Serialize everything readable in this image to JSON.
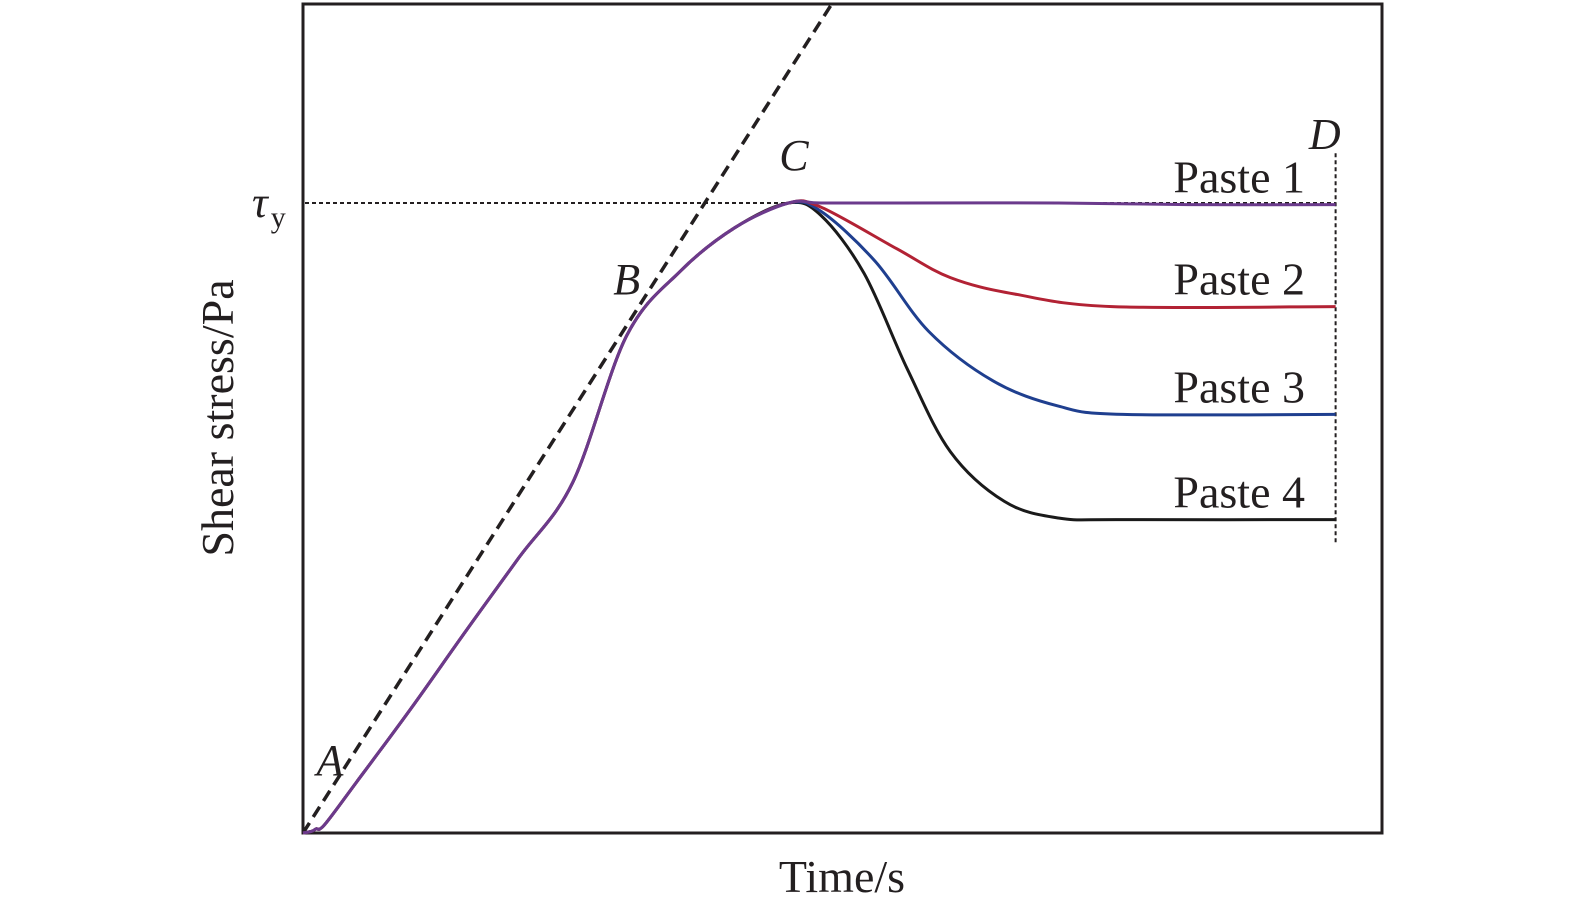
{
  "chart_data": {
    "type": "line",
    "xlabel": "Time/s",
    "ylabel": "Shear stress/Pa",
    "grid": false,
    "legend": "none (series labeled inline at right end of each curve)",
    "axis_ticks": "none",
    "x_range": [
      0,
      100
    ],
    "y_range": [
      0,
      100
    ],
    "reference_line": {
      "label_symbol": "τ",
      "label_subscript": "y",
      "y": 76,
      "style": "dotted horizontal"
    },
    "tangent_line": {
      "style": "dashed",
      "points": [
        {
          "x": 0,
          "y": 0
        },
        {
          "x": 49,
          "y": 100
        }
      ]
    },
    "end_marker": {
      "style": "dotted vertical",
      "x": 95.7,
      "y_from": 35,
      "y_to": 82
    },
    "point_labels": [
      {
        "text": "A",
        "x": 2.5,
        "y": 7
      },
      {
        "text": "B",
        "x": 30,
        "y": 65
      },
      {
        "text": "C",
        "x": 45.5,
        "y": 80
      },
      {
        "text": "D",
        "x": 94.7,
        "y": 82.5
      }
    ],
    "series": [
      {
        "name": "Paste 1",
        "color": "#6b3a8c",
        "points": [
          [
            0,
            0
          ],
          [
            0.8,
            0.2
          ],
          [
            1.2,
            0.5
          ],
          [
            2,
            1
          ],
          [
            5,
            6.2
          ],
          [
            10,
            15
          ],
          [
            15,
            24.2
          ],
          [
            20,
            33.2
          ],
          [
            25,
            42.3
          ],
          [
            30,
            60
          ],
          [
            35,
            67.8
          ],
          [
            40,
            73
          ],
          [
            45,
            76
          ],
          [
            48,
            76
          ],
          [
            55,
            76
          ],
          [
            70,
            76
          ],
          [
            82,
            75.8
          ],
          [
            95.7,
            75.8
          ]
        ]
      },
      {
        "name": "Paste 2",
        "color": "#b22234",
        "points": [
          [
            0,
            0
          ],
          [
            0.8,
            0.2
          ],
          [
            1.2,
            0.5
          ],
          [
            2,
            1
          ],
          [
            5,
            6.2
          ],
          [
            10,
            15
          ],
          [
            15,
            24.2
          ],
          [
            20,
            33.2
          ],
          [
            25,
            42.3
          ],
          [
            30,
            60
          ],
          [
            35,
            67.8
          ],
          [
            40,
            73
          ],
          [
            45,
            76
          ],
          [
            48,
            75.5
          ],
          [
            55,
            70.5
          ],
          [
            60,
            67
          ],
          [
            66,
            65
          ],
          [
            75,
            63.5
          ],
          [
            95.7,
            63.5
          ]
        ]
      },
      {
        "name": "Paste 3",
        "color": "#1f3f8f",
        "points": [
          [
            0,
            0
          ],
          [
            0.8,
            0.2
          ],
          [
            1.2,
            0.5
          ],
          [
            2,
            1
          ],
          [
            5,
            6.2
          ],
          [
            10,
            15
          ],
          [
            15,
            24.2
          ],
          [
            20,
            33.2
          ],
          [
            25,
            42.3
          ],
          [
            30,
            60
          ],
          [
            35,
            67.8
          ],
          [
            40,
            73
          ],
          [
            45,
            76
          ],
          [
            48,
            75
          ],
          [
            53,
            69
          ],
          [
            58,
            60.5
          ],
          [
            64,
            54.5
          ],
          [
            70,
            51.5
          ],
          [
            76,
            50.5
          ],
          [
            95.7,
            50.5
          ]
        ]
      },
      {
        "name": "Paste 4",
        "color": "#1a1a1a",
        "points": [
          [
            0,
            0
          ],
          [
            0.8,
            0.2
          ],
          [
            1.2,
            0.5
          ],
          [
            2,
            1
          ],
          [
            5,
            6.2
          ],
          [
            10,
            15
          ],
          [
            15,
            24.2
          ],
          [
            20,
            33.2
          ],
          [
            25,
            42.3
          ],
          [
            30,
            60
          ],
          [
            35,
            67.8
          ],
          [
            40,
            73
          ],
          [
            45,
            76
          ],
          [
            48,
            74.5
          ],
          [
            52,
            67.5
          ],
          [
            56,
            56
          ],
          [
            60,
            46
          ],
          [
            65,
            40
          ],
          [
            70,
            38
          ],
          [
            76,
            37.8
          ],
          [
            95.7,
            37.8
          ]
        ]
      }
    ]
  }
}
